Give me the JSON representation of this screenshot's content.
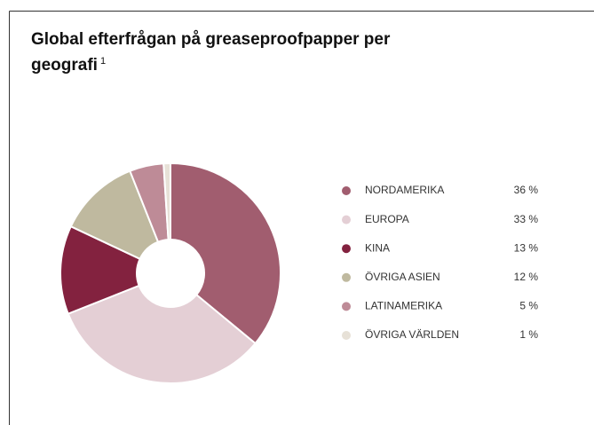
{
  "chart_data": {
    "type": "pie",
    "title": "Global efterfrågan på greaseproofpapper per geografi",
    "title_note": "1",
    "categories": [
      "NORDAMERIKA",
      "EUROPA",
      "KINA",
      "ÖVRIGA ASIEN",
      "LATINAMERIKA",
      "ÖVRIGA VÄRLDEN"
    ],
    "values": [
      36,
      33,
      13,
      12,
      5,
      1
    ],
    "value_labels": [
      "36 %",
      "33 %",
      "13 %",
      "12 %",
      "5 %",
      "1 %"
    ],
    "colors": [
      "#a15d6f",
      "#e4cfd5",
      "#83223f",
      "#bfb99f",
      "#be8b97",
      "#e7e1d7"
    ],
    "donut": true
  }
}
